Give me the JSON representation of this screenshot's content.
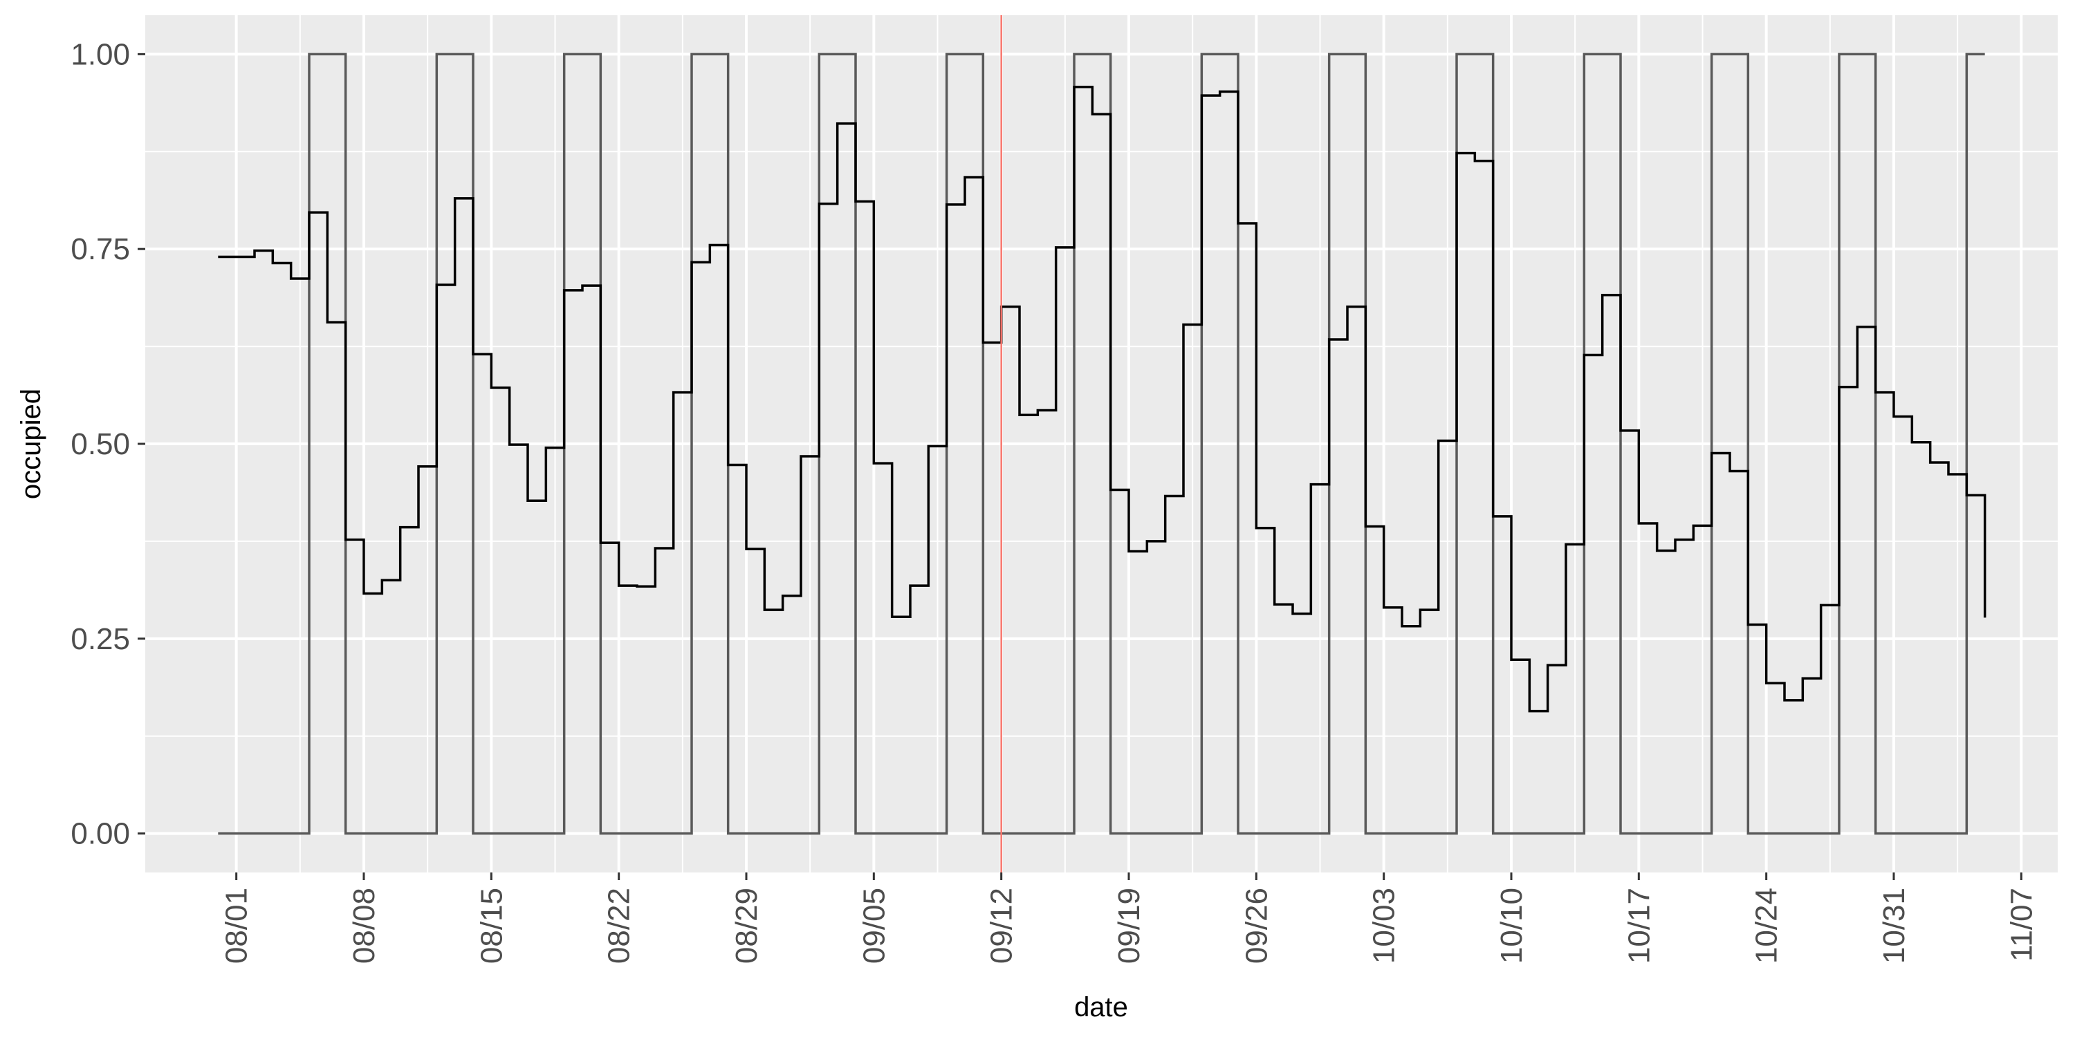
{
  "chart_data": {
    "type": "line",
    "title": "",
    "xlabel": "date",
    "ylabel": "occupied",
    "x_tick_labels": [
      "08/01",
      "08/08",
      "08/15",
      "08/22",
      "08/29",
      "09/05",
      "09/12",
      "09/19",
      "09/26",
      "10/03",
      "10/10",
      "10/17",
      "10/24",
      "10/31",
      "11/07"
    ],
    "y_tick_labels": [
      "0.00",
      "0.25",
      "0.50",
      "0.75",
      "1.00"
    ],
    "y_ticks": [
      0,
      0.25,
      0.5,
      0.75,
      1.0
    ],
    "ylim": [
      -0.05,
      1.05
    ],
    "xlim": [
      "2022-07-27",
      "2022-11-09"
    ],
    "grid": true,
    "reference_line": {
      "x": "2022-09-12",
      "color": "#f8766d"
    },
    "colors": {
      "panel": "#ebebeb",
      "grid": "#ffffff",
      "occupied": "#000000",
      "weekend": "#595959",
      "tick_text": "#4d4d4d"
    },
    "series": [
      {
        "key": "occupied",
        "step": "post",
        "dates": [
          "2022-07-31",
          "2022-08-01",
          "2022-08-02",
          "2022-08-03",
          "2022-08-04",
          "2022-08-05",
          "2022-08-06",
          "2022-08-07",
          "2022-08-08",
          "2022-08-09",
          "2022-08-10",
          "2022-08-11",
          "2022-08-12",
          "2022-08-13",
          "2022-08-14",
          "2022-08-15",
          "2022-08-16",
          "2022-08-17",
          "2022-08-18",
          "2022-08-19",
          "2022-08-20",
          "2022-08-21",
          "2022-08-22",
          "2022-08-23",
          "2022-08-24",
          "2022-08-25",
          "2022-08-26",
          "2022-08-27",
          "2022-08-28",
          "2022-08-29",
          "2022-08-30",
          "2022-08-31",
          "2022-09-01",
          "2022-09-02",
          "2022-09-03",
          "2022-09-04",
          "2022-09-05",
          "2022-09-06",
          "2022-09-07",
          "2022-09-08",
          "2022-09-09",
          "2022-09-10",
          "2022-09-11",
          "2022-09-12",
          "2022-09-13",
          "2022-09-14",
          "2022-09-15",
          "2022-09-16",
          "2022-09-17",
          "2022-09-18",
          "2022-09-19",
          "2022-09-20",
          "2022-09-21",
          "2022-09-22",
          "2022-09-23",
          "2022-09-24",
          "2022-09-25",
          "2022-09-26",
          "2022-09-27",
          "2022-09-28",
          "2022-09-29",
          "2022-09-30",
          "2022-10-01",
          "2022-10-02",
          "2022-10-03",
          "2022-10-04",
          "2022-10-05",
          "2022-10-06",
          "2022-10-07",
          "2022-10-08",
          "2022-10-09",
          "2022-10-10",
          "2022-10-11",
          "2022-10-12",
          "2022-10-13",
          "2022-10-14",
          "2022-10-15",
          "2022-10-16",
          "2022-10-17",
          "2022-10-18",
          "2022-10-19",
          "2022-10-20",
          "2022-10-21",
          "2022-10-22",
          "2022-10-23",
          "2022-10-24",
          "2022-10-25",
          "2022-10-26",
          "2022-10-27",
          "2022-10-28",
          "2022-10-29",
          "2022-10-30",
          "2022-10-31",
          "2022-11-01",
          "2022-11-02",
          "2022-11-03",
          "2022-11-04",
          "2022-11-05"
        ],
        "values": [
          0.74,
          0.74,
          0.748,
          0.732,
          0.712,
          0.797,
          0.656,
          0.377,
          0.308,
          0.325,
          0.393,
          0.471,
          0.704,
          0.815,
          0.615,
          0.572,
          0.499,
          0.427,
          0.495,
          0.697,
          0.703,
          0.373,
          0.318,
          0.317,
          0.366,
          0.566,
          0.733,
          0.755,
          0.473,
          0.365,
          0.287,
          0.305,
          0.484,
          0.808,
          0.911,
          0.811,
          0.475,
          0.278,
          0.318,
          0.497,
          0.807,
          0.842,
          0.63,
          0.676,
          0.537,
          0.543,
          0.752,
          0.958,
          0.923,
          0.441,
          0.362,
          0.375,
          0.433,
          0.653,
          0.947,
          0.952,
          0.783,
          0.392,
          0.294,
          0.282,
          0.448,
          0.634,
          0.676,
          0.394,
          0.29,
          0.266,
          0.287,
          0.504,
          0.873,
          0.863,
          0.407,
          0.223,
          0.157,
          0.216,
          0.371,
          0.614,
          0.691,
          0.517,
          0.398,
          0.363,
          0.377,
          0.395,
          0.488,
          0.465,
          0.268,
          0.193,
          0.171,
          0.199,
          0.293,
          0.573,
          0.65,
          0.566,
          0.535,
          0.502,
          0.476,
          0.461,
          0.434,
          0.277
        ]
      },
      {
        "key": "weekend",
        "step": "post",
        "dates": [
          "2022-07-31",
          "2022-08-05",
          "2022-08-07",
          "2022-08-12",
          "2022-08-14",
          "2022-08-19",
          "2022-08-21",
          "2022-08-26",
          "2022-08-28",
          "2022-09-02",
          "2022-09-04",
          "2022-09-09",
          "2022-09-11",
          "2022-09-16",
          "2022-09-18",
          "2022-09-23",
          "2022-09-25",
          "2022-09-30",
          "2022-10-02",
          "2022-10-07",
          "2022-10-09",
          "2022-10-14",
          "2022-10-16",
          "2022-10-21",
          "2022-10-23",
          "2022-10-28",
          "2022-10-30",
          "2022-11-04",
          "2022-11-05"
        ],
        "values": [
          0,
          1,
          0,
          1,
          0,
          1,
          0,
          1,
          0,
          1,
          0,
          1,
          0,
          1,
          0,
          1,
          0,
          1,
          0,
          1,
          0,
          1,
          0,
          1,
          0,
          1,
          0,
          1,
          1
        ]
      }
    ]
  }
}
